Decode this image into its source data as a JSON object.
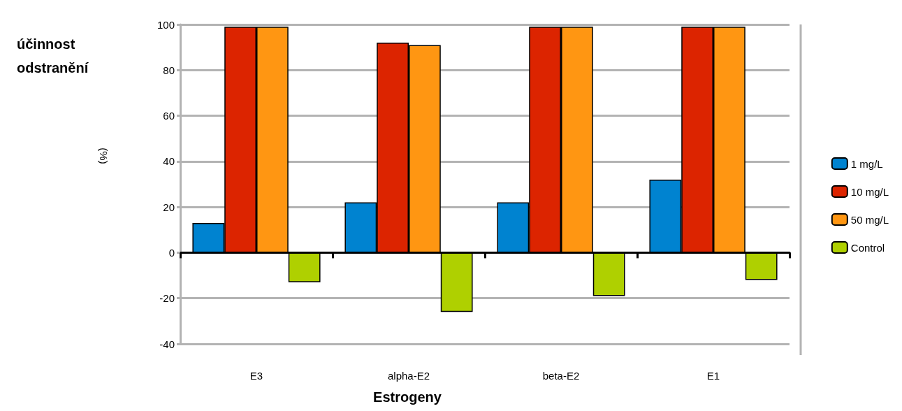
{
  "chart_data": {
    "type": "bar",
    "xlabel": "Estrogeny",
    "ylabel": "účinnost odstranění",
    "annotations": [
      "(%)"
    ],
    "categories": [
      "E3",
      "alpha-E2",
      "beta-E2",
      "E1"
    ],
    "series": [
      {
        "name": "1 mg/L",
        "color": "#0083d0",
        "values": [
          13,
          22,
          22,
          32
        ]
      },
      {
        "name": "10 mg/L",
        "color": "#dc2400",
        "values": [
          99,
          92,
          99,
          99
        ]
      },
      {
        "name": "50 mg/L",
        "color": "#ff9612",
        "values": [
          99,
          91,
          99,
          99
        ]
      },
      {
        "name": "Control",
        "color": "#afd000",
        "values": [
          -13,
          -26,
          -19,
          -12
        ]
      }
    ],
    "ylim": [
      -40,
      100
    ],
    "yticks": [
      -40,
      -20,
      0,
      20,
      40,
      60,
      80,
      100
    ],
    "grid": "y",
    "legend": "right"
  }
}
